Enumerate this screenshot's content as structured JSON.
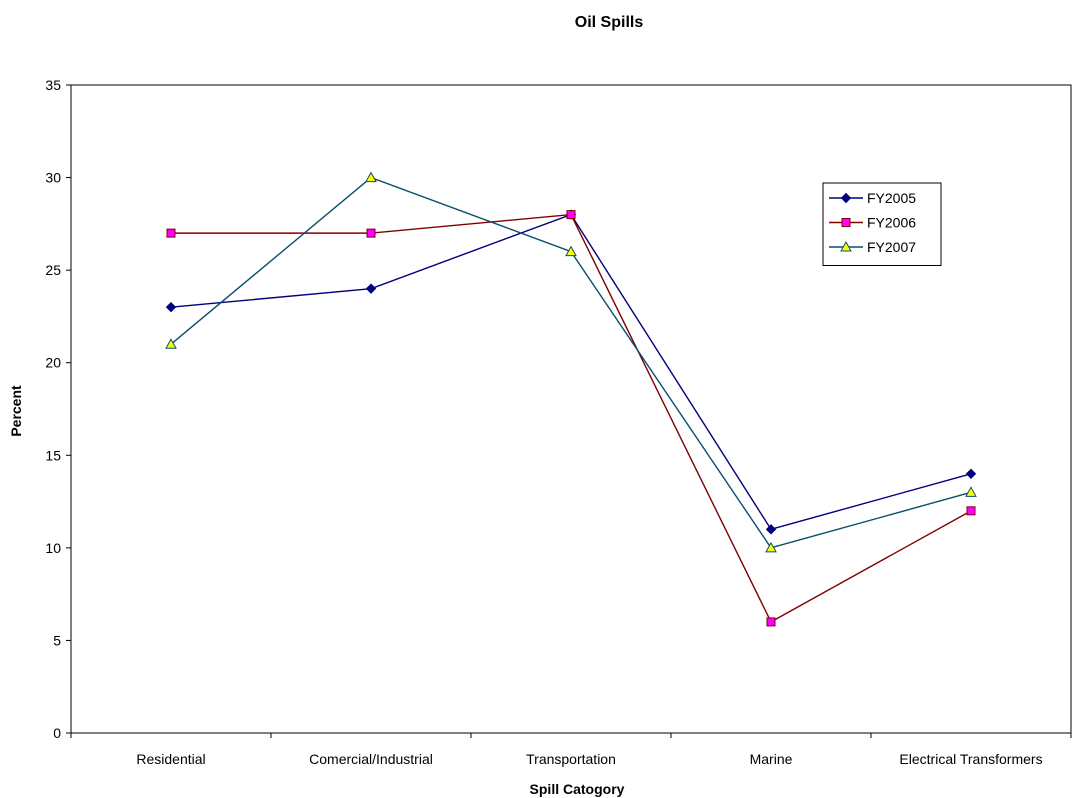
{
  "chart_data": {
    "type": "line",
    "title": "Oil Spills",
    "xlabel": "Spill Catogory",
    "ylabel": "Percent",
    "categories": [
      "Residential",
      "Comercial/Industrial",
      "Transportation",
      "Marine",
      "Electrical Transformers"
    ],
    "ylim": [
      0,
      35
    ],
    "yticks": [
      "0",
      "5",
      "10",
      "15",
      "20",
      "25",
      "30",
      "35"
    ],
    "grid": false,
    "legend_position": "top-right",
    "series": [
      {
        "name": "FY2005",
        "values": [
          23,
          24,
          28,
          11,
          14
        ],
        "color": "#000080",
        "fill": "#000080",
        "marker": "diamond"
      },
      {
        "name": "FY2006",
        "values": [
          27,
          27,
          28,
          6,
          12
        ],
        "color": "#800000",
        "fill": "#ff00ff",
        "marker": "square"
      },
      {
        "name": "FY2007",
        "values": [
          21,
          30,
          26,
          10,
          13
        ],
        "color": "#0b4f6c",
        "fill": "#ffff00",
        "marker": "triangle"
      }
    ]
  }
}
